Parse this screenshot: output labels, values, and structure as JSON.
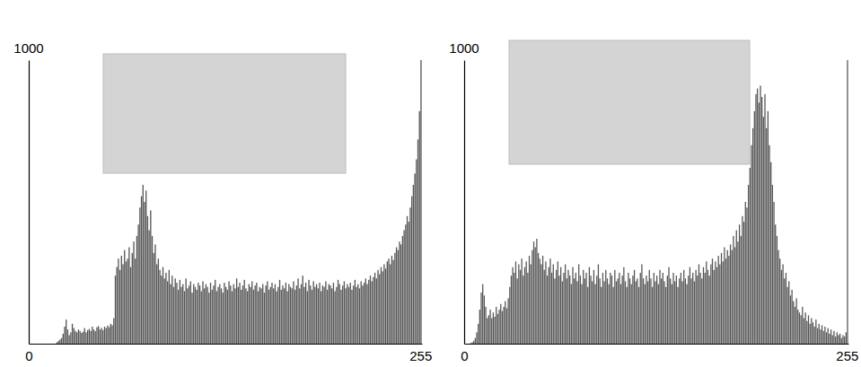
{
  "chart_data": [
    {
      "type": "histogram",
      "color": "#555555",
      "xlim": [
        0,
        256
      ],
      "xticks": [
        0,
        255
      ],
      "ylim": [
        0,
        1000
      ],
      "yticks": [
        1000
      ],
      "bins": [
        0,
        1,
        2,
        3,
        4,
        5,
        6,
        7,
        8,
        9,
        10,
        11,
        12,
        13,
        14,
        15,
        16,
        17,
        18,
        19,
        20,
        21,
        22,
        23,
        24,
        25,
        26,
        27,
        28,
        29,
        30,
        31,
        32,
        33,
        34,
        35,
        36,
        37,
        38,
        39,
        40,
        41,
        42,
        43,
        44,
        45,
        46,
        47,
        48,
        49,
        50,
        51,
        52,
        53,
        54,
        55,
        56,
        57,
        58,
        59,
        60,
        61,
        62,
        63,
        64,
        65,
        66,
        67,
        68,
        69,
        70,
        71,
        72,
        73,
        74,
        75,
        76,
        77,
        78,
        79,
        80,
        81,
        82,
        83,
        84,
        85,
        86,
        87,
        88,
        89,
        90,
        91,
        92,
        93,
        94,
        95,
        96,
        97,
        98,
        99,
        100,
        101,
        102,
        103,
        104,
        105,
        106,
        107,
        108,
        109,
        110,
        111,
        112,
        113,
        114,
        115,
        116,
        117,
        118,
        119,
        120,
        121,
        122,
        123,
        124,
        125,
        126,
        127,
        128,
        129,
        130,
        131,
        132,
        133,
        134,
        135,
        136,
        137,
        138,
        139,
        140,
        141,
        142,
        143,
        144,
        145,
        146,
        147,
        148,
        149,
        150,
        151,
        152,
        153,
        154,
        155,
        156,
        157,
        158,
        159,
        160,
        161,
        162,
        163,
        164,
        165,
        166,
        167,
        168,
        169,
        170,
        171,
        172,
        173,
        174,
        175,
        176,
        177,
        178,
        179,
        180,
        181,
        182,
        183,
        184,
        185,
        186,
        187,
        188,
        189,
        190,
        191,
        192,
        193,
        194,
        195,
        196,
        197,
        198,
        199,
        200,
        201,
        202,
        203,
        204,
        205,
        206,
        207,
        208,
        209,
        210,
        211,
        212,
        213,
        214,
        215,
        216,
        217,
        218,
        219,
        220,
        221,
        222,
        223,
        224,
        225,
        226,
        227,
        228,
        229,
        230,
        231,
        232,
        233,
        234,
        235,
        236,
        237,
        238,
        239,
        240,
        241,
        242,
        243,
        244,
        245,
        246,
        247,
        248,
        249,
        250,
        251,
        252,
        253,
        254,
        255,
        256
      ],
      "values": [
        0,
        0,
        0,
        0,
        0,
        0,
        0,
        0,
        0,
        0,
        0,
        0,
        0,
        0,
        0,
        0,
        0,
        0,
        5,
        10,
        15,
        20,
        35,
        60,
        85,
        50,
        30,
        40,
        70,
        55,
        45,
        40,
        50,
        45,
        38,
        42,
        55,
        40,
        48,
        52,
        45,
        60,
        50,
        44,
        58,
        62,
        50,
        56,
        48,
        60,
        55,
        64,
        58,
        70,
        65,
        90,
        240,
        270,
        300,
        260,
        310,
        280,
        330,
        290,
        300,
        340,
        270,
        320,
        360,
        300,
        380,
        420,
        480,
        520,
        560,
        500,
        540,
        450,
        400,
        470,
        380,
        320,
        350,
        280,
        300,
        260,
        240,
        270,
        230,
        250,
        220,
        260,
        210,
        240,
        200,
        230,
        215,
        190,
        225,
        200,
        210,
        185,
        230,
        195,
        205,
        220,
        180,
        210,
        200,
        190,
        215,
        205,
        185,
        220,
        195,
        210,
        200,
        180,
        215,
        190,
        205,
        225,
        185,
        200,
        210,
        195,
        180,
        215,
        200,
        190,
        220,
        205,
        185,
        210,
        195,
        230,
        200,
        215,
        190,
        205,
        225,
        195,
        185,
        210,
        200,
        220,
        190,
        205,
        215,
        185,
        200,
        195,
        210,
        180,
        205,
        220,
        190,
        200,
        215,
        195,
        210,
        185,
        200,
        225,
        190,
        205,
        195,
        215,
        185,
        210,
        200,
        195,
        220,
        190,
        205,
        230,
        195,
        210,
        240,
        200,
        215,
        185,
        225,
        205,
        190,
        220,
        200,
        210,
        195,
        215,
        185,
        205,
        200,
        220,
        190,
        210,
        205,
        195,
        215,
        185,
        200,
        225,
        210,
        190,
        205,
        220,
        195,
        210,
        200,
        215,
        190,
        205,
        225,
        200,
        210,
        195,
        220,
        205,
        215,
        230,
        210,
        225,
        240,
        220,
        235,
        250,
        230,
        260,
        245,
        270,
        255,
        280,
        265,
        290,
        300,
        280,
        310,
        295,
        320,
        340,
        330,
        360,
        350,
        380,
        400,
        420,
        450,
        430,
        480,
        520,
        560,
        600,
        650,
        720,
        820,
        1000
      ]
    },
    {
      "type": "histogram",
      "color": "#555555",
      "xlim": [
        0,
        256
      ],
      "xticks": [
        0,
        255
      ],
      "ylim": [
        0,
        1000
      ],
      "yticks": [
        1000
      ],
      "bins": [
        0,
        1,
        2,
        3,
        4,
        5,
        6,
        7,
        8,
        9,
        10,
        11,
        12,
        13,
        14,
        15,
        16,
        17,
        18,
        19,
        20,
        21,
        22,
        23,
        24,
        25,
        26,
        27,
        28,
        29,
        30,
        31,
        32,
        33,
        34,
        35,
        36,
        37,
        38,
        39,
        40,
        41,
        42,
        43,
        44,
        45,
        46,
        47,
        48,
        49,
        50,
        51,
        52,
        53,
        54,
        55,
        56,
        57,
        58,
        59,
        60,
        61,
        62,
        63,
        64,
        65,
        66,
        67,
        68,
        69,
        70,
        71,
        72,
        73,
        74,
        75,
        76,
        77,
        78,
        79,
        80,
        81,
        82,
        83,
        84,
        85,
        86,
        87,
        88,
        89,
        90,
        91,
        92,
        93,
        94,
        95,
        96,
        97,
        98,
        99,
        100,
        101,
        102,
        103,
        104,
        105,
        106,
        107,
        108,
        109,
        110,
        111,
        112,
        113,
        114,
        115,
        116,
        117,
        118,
        119,
        120,
        121,
        122,
        123,
        124,
        125,
        126,
        127,
        128,
        129,
        130,
        131,
        132,
        133,
        134,
        135,
        136,
        137,
        138,
        139,
        140,
        141,
        142,
        143,
        144,
        145,
        146,
        147,
        148,
        149,
        150,
        151,
        152,
        153,
        154,
        155,
        156,
        157,
        158,
        159,
        160,
        161,
        162,
        163,
        164,
        165,
        166,
        167,
        168,
        169,
        170,
        171,
        172,
        173,
        174,
        175,
        176,
        177,
        178,
        179,
        180,
        181,
        182,
        183,
        184,
        185,
        186,
        187,
        188,
        189,
        190,
        191,
        192,
        193,
        194,
        195,
        196,
        197,
        198,
        199,
        200,
        201,
        202,
        203,
        204,
        205,
        206,
        207,
        208,
        209,
        210,
        211,
        212,
        213,
        214,
        215,
        216,
        217,
        218,
        219,
        220,
        221,
        222,
        223,
        224,
        225,
        226,
        227,
        228,
        229,
        230,
        231,
        232,
        233,
        234,
        235,
        236,
        237,
        238,
        239,
        240,
        241,
        242,
        243,
        244,
        245,
        246,
        247,
        248,
        249,
        250,
        251,
        252,
        253,
        254,
        255,
        256
      ],
      "values": [
        0,
        0,
        0,
        0,
        2,
        5,
        10,
        20,
        40,
        70,
        120,
        180,
        210,
        170,
        130,
        90,
        100,
        120,
        90,
        110,
        95,
        130,
        105,
        120,
        140,
        115,
        130,
        150,
        125,
        160,
        200,
        240,
        270,
        250,
        290,
        230,
        280,
        260,
        300,
        240,
        270,
        290,
        250,
        310,
        280,
        330,
        360,
        340,
        370,
        320,
        300,
        280,
        310,
        260,
        290,
        240,
        270,
        300,
        250,
        280,
        230,
        260,
        290,
        240,
        270,
        220,
        250,
        280,
        230,
        260,
        240,
        210,
        270,
        230,
        250,
        220,
        280,
        240,
        210,
        260,
        230,
        250,
        200,
        270,
        240,
        220,
        260,
        210,
        240,
        280,
        230,
        200,
        250,
        220,
        260,
        230,
        210,
        250,
        240,
        200,
        260,
        220,
        230,
        250,
        210,
        240,
        270,
        220,
        200,
        250,
        230,
        210,
        240,
        260,
        220,
        230,
        200,
        250,
        280,
        230,
        210,
        240,
        220,
        260,
        230,
        200,
        250,
        220,
        240,
        210,
        260,
        230,
        250,
        220,
        200,
        240,
        270,
        230,
        210,
        250,
        220,
        240,
        200,
        230,
        250,
        220,
        260,
        230,
        210,
        240,
        270,
        230,
        250,
        220,
        260,
        240,
        280,
        250,
        230,
        270,
        250,
        290,
        260,
        240,
        280,
        300,
        260,
        290,
        270,
        310,
        280,
        320,
        290,
        340,
        300,
        330,
        310,
        350,
        330,
        380,
        340,
        400,
        360,
        420,
        380,
        450,
        430,
        500,
        480,
        560,
        620,
        700,
        760,
        820,
        880,
        900,
        850,
        910,
        870,
        800,
        880,
        760,
        820,
        700,
        640,
        560,
        500,
        420,
        380,
        330,
        300,
        260,
        280,
        230,
        250,
        200,
        220,
        170,
        190,
        150,
        130,
        160,
        120,
        110,
        100,
        130,
        90,
        110,
        80,
        100,
        70,
        90,
        75,
        60,
        85,
        55,
        70,
        50,
        65,
        45,
        60,
        40,
        55,
        35,
        50,
        30,
        45,
        25,
        40,
        30,
        35,
        20,
        30,
        25,
        40,
        1000
      ]
    }
  ]
}
